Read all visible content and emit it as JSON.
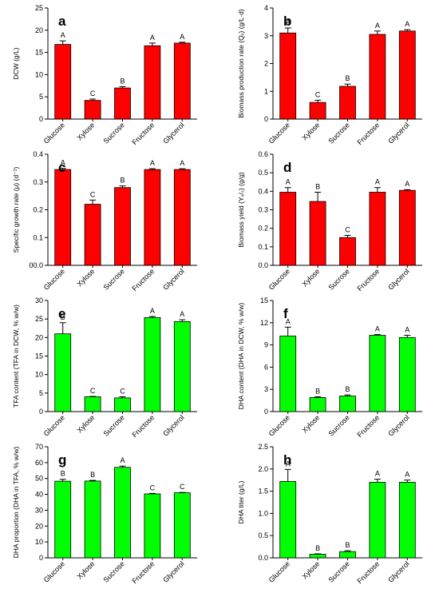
{
  "chart_data": [
    {
      "panel": "a",
      "type": "bar",
      "categories": [
        "Glucose",
        "Xylose",
        "Sucrose",
        "Fructose",
        "Glycerol"
      ],
      "values": [
        16.8,
        4.2,
        7.0,
        16.5,
        17.1
      ],
      "errors": [
        0.8,
        0.3,
        0.3,
        0.6,
        0.2
      ],
      "letters": [
        "A",
        "C",
        "B",
        "A",
        "A"
      ],
      "ylabel": "DCW (g/L)",
      "ylim": [
        0,
        25
      ],
      "yticks": [
        "0",
        "5",
        "10",
        "15",
        "20",
        "25"
      ],
      "color": "#ff0000"
    },
    {
      "panel": "b",
      "type": "bar",
      "categories": [
        "Glucose",
        "Xylose",
        "Sucrose",
        "Fructose",
        "Glycerol"
      ],
      "values": [
        3.1,
        0.6,
        1.18,
        3.05,
        3.17
      ],
      "errors": [
        0.18,
        0.08,
        0.08,
        0.12,
        0.05
      ],
      "letters": [
        "A",
        "C",
        "B",
        "A",
        "A"
      ],
      "ylabel": "Biomass production rate (Qₓ) (g/L·d)",
      "ylim": [
        0,
        4
      ],
      "yticks": [
        "0",
        "1",
        "2",
        "3",
        "4"
      ],
      "color": "#ff0000"
    },
    {
      "panel": "c",
      "type": "bar",
      "categories": [
        "Glucose",
        "Xylose",
        "Sucrose",
        "Fructose",
        "Glycerol"
      ],
      "values": [
        0.345,
        0.22,
        0.28,
        0.345,
        0.345
      ],
      "errors": [
        0.004,
        0.015,
        0.006,
        0.003,
        0.003
      ],
      "letters": [
        "A",
        "C",
        "B",
        "A",
        "A"
      ],
      "ylabel": "Specific growth rate (μ) (d⁻¹)",
      "ylim": [
        0,
        0.4
      ],
      "yticks": [
        "00.0",
        "0.1",
        "0.2",
        "0.3",
        "0.4"
      ],
      "color": "#ff0000"
    },
    {
      "panel": "d",
      "type": "bar",
      "categories": [
        "Glucose",
        "Xylose",
        "Sucrose",
        "Fructose",
        "Glycerol"
      ],
      "values": [
        0.395,
        0.345,
        0.15,
        0.395,
        0.405
      ],
      "errors": [
        0.025,
        0.05,
        0.012,
        0.025,
        0.004
      ],
      "letters": [
        "A",
        "B",
        "C",
        "A",
        "A"
      ],
      "ylabel": "Biomass yield (Yₓ/ₛ) (g/g)",
      "ylim": [
        0,
        0.6
      ],
      "yticks": [
        "0.0",
        "0.1",
        "0.2",
        "0.3",
        "0.4",
        "0.5",
        "0.6"
      ],
      "color": "#ff0000"
    },
    {
      "panel": "e",
      "type": "bar",
      "categories": [
        "Glucose",
        "Xylose",
        "Sucrose",
        "Fructose",
        "Glycerol"
      ],
      "values": [
        21.0,
        4.0,
        3.7,
        25.4,
        24.3
      ],
      "errors": [
        3.0,
        0.1,
        0.3,
        0.3,
        0.5
      ],
      "letters": [
        "B",
        "C",
        "C",
        "A",
        "A"
      ],
      "ylabel": "TFA content (TFA in DCW, % w/w)",
      "ylim": [
        0,
        30
      ],
      "yticks": [
        "0",
        "5",
        "10",
        "15",
        "20",
        "25",
        "30"
      ],
      "color": "#00ff00"
    },
    {
      "panel": "f",
      "type": "bar",
      "categories": [
        "Glucose",
        "Xylose",
        "Sucrose",
        "Fructose",
        "Glycerol"
      ],
      "values": [
        10.2,
        1.9,
        2.1,
        10.3,
        10.0
      ],
      "errors": [
        1.2,
        0.1,
        0.15,
        0.1,
        0.3
      ],
      "letters": [
        "A",
        "B",
        "B",
        "A",
        "A"
      ],
      "ylabel": "DHA content (DHA in DCW, % w/w)",
      "ylim": [
        0,
        15
      ],
      "yticks": [
        "0",
        "3",
        "6",
        "9",
        "12",
        "15"
      ],
      "color": "#00ff00"
    },
    {
      "panel": "g",
      "type": "bar",
      "categories": [
        "Glucose",
        "Xylose",
        "Sucrose",
        "Fructose",
        "Glycerol"
      ],
      "values": [
        48.3,
        48.4,
        57.0,
        40.3,
        41.0
      ],
      "errors": [
        1.2,
        0.4,
        0.8,
        0.3,
        0.2
      ],
      "letters": [
        "B",
        "B",
        "A",
        "C",
        "C"
      ],
      "ylabel": "DHA proportion (DHA in TFA, % w/w)",
      "ylim": [
        0,
        70
      ],
      "yticks": [
        "0",
        "10",
        "20",
        "30",
        "40",
        "50",
        "60",
        "70"
      ],
      "color": "#00ff00"
    },
    {
      "panel": "h",
      "type": "bar",
      "categories": [
        "Glucose",
        "Xylose",
        "Sucrose",
        "Fructose",
        "Glycerol"
      ],
      "values": [
        1.72,
        0.08,
        0.14,
        1.7,
        1.7
      ],
      "errors": [
        0.27,
        0.01,
        0.02,
        0.07,
        0.05
      ],
      "letters": [
        "A",
        "B",
        "B",
        "A",
        "A"
      ],
      "ylabel": "DHA titer (g/L)",
      "ylim": [
        0,
        2.5
      ],
      "yticks": [
        "0.0",
        "0.5",
        "1.0",
        "1.5",
        "2.0",
        "2.5"
      ],
      "color": "#00ff00"
    }
  ]
}
